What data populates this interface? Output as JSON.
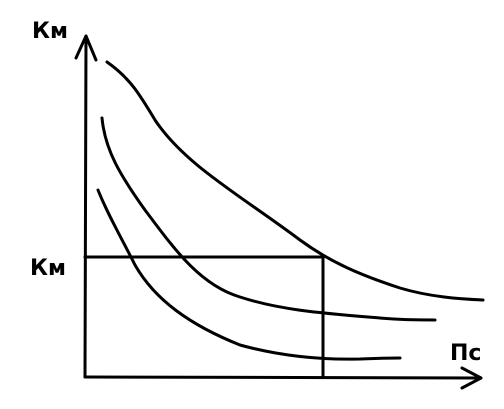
{
  "axes": {
    "y_label": "Км",
    "x_label": "Пс"
  },
  "point": {
    "y_label": "Км"
  }
}
